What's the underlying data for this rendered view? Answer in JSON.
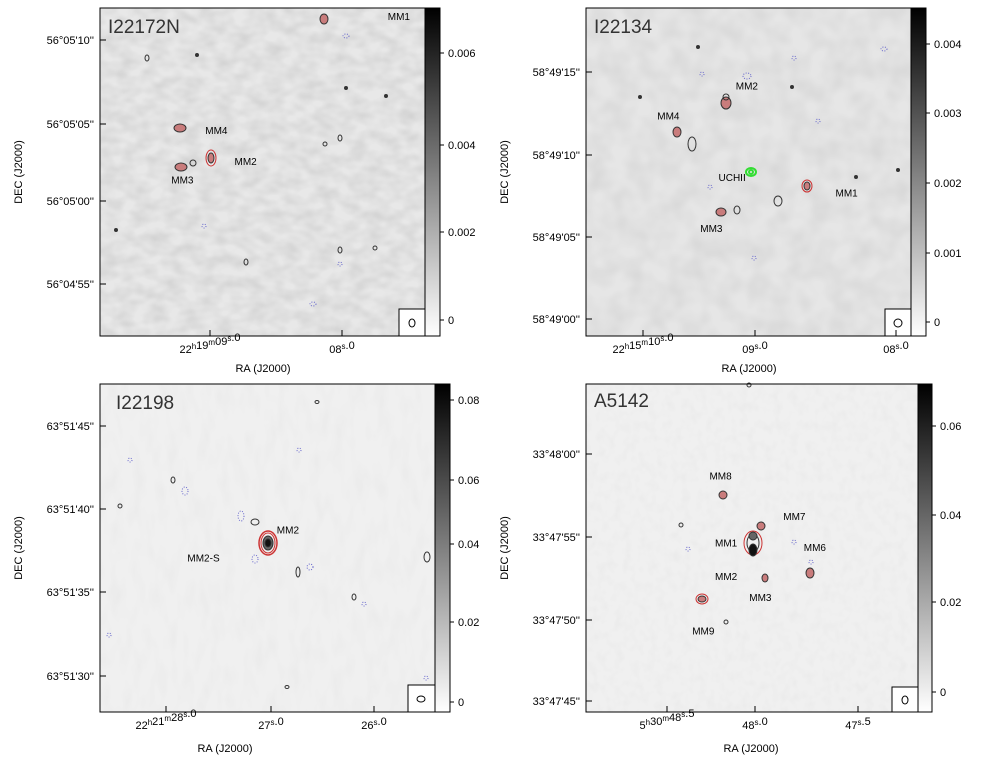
{
  "chart_data": [
    {
      "type": "contour-map",
      "title": "I22172N",
      "xlabel": "RA (J2000)",
      "ylabel": "DEC (J2000)",
      "x_ticks": [
        "22h19m09.0s",
        "08.0s"
      ],
      "x_tick_labels": [
        {
          "main": "22",
          "sup": "h",
          "main2": "19",
          "sup2": "m",
          "main3": "09",
          "sup3": "s",
          "main4": ".0"
        },
        {
          "main": "08",
          "sup": "s",
          "main2": ".0"
        }
      ],
      "y_tick_labels": [
        "56°05'10''",
        "56°05'05''",
        "56°05'00''",
        "56°04'55''"
      ],
      "colorbar": {
        "ticks": [
          "0.006",
          "0.004",
          "0.002",
          "0"
        ],
        "range": [
          0,
          0.0071
        ]
      },
      "sources": [
        {
          "name": "MM1",
          "ra_frac": 0.83,
          "dec_frac": 0.955
        },
        {
          "name": "MM2",
          "ra_frac": 0.34,
          "dec_frac": 0.53
        },
        {
          "name": "MM3",
          "ra_frac": 0.25,
          "dec_frac": 0.52
        },
        {
          "name": "MM4",
          "ra_frac": 0.25,
          "dec_frac": 0.625
        }
      ]
    },
    {
      "type": "contour-map",
      "title": "I22134",
      "xlabel": "RA (J2000)",
      "ylabel": "DEC (J2000)",
      "x_ticks": [
        "22h15m10.0s",
        "09.0s",
        "08.0s"
      ],
      "x_tick_labels": [
        {
          "main": "22",
          "sup": "h",
          "main2": "15",
          "sup2": "m",
          "main3": "10",
          "sup3": "s",
          "main4": ".0"
        },
        {
          "main": "09",
          "sup": "s",
          "main2": ".0"
        },
        {
          "main": "08",
          "sup": "s",
          "main2": ".0"
        }
      ],
      "y_tick_labels": [
        "58°49'15''",
        "58°49'10''",
        "58°49'05''",
        "58°49'00''"
      ],
      "colorbar": {
        "ticks": [
          "0.004",
          "0.003",
          "0.002",
          "0.001",
          "0"
        ],
        "range": [
          0,
          0.0045
        ]
      },
      "sources": [
        {
          "name": "MM1",
          "ra_frac": 0.7,
          "dec_frac": 0.44
        },
        {
          "name": "MM2",
          "ra_frac": 0.43,
          "dec_frac": 0.74
        },
        {
          "name": "MM3",
          "ra_frac": 0.37,
          "dec_frac": 0.36
        },
        {
          "name": "MM4",
          "ra_frac": 0.25,
          "dec_frac": 0.62
        },
        {
          "name": "UCHII",
          "ra_frac": 0.5,
          "dec_frac": 0.485
        }
      ]
    },
    {
      "type": "contour-map",
      "title": "I22198",
      "xlabel": "RA (J2000)",
      "ylabel": "DEC (J2000)",
      "x_ticks": [
        "22h21m28.0s",
        "27.0s",
        "26.0s"
      ],
      "x_tick_labels": [
        {
          "main": "22",
          "sup": "h",
          "main2": "21",
          "sup2": "m",
          "main3": "28",
          "sup3": "s",
          "main4": ".0"
        },
        {
          "main": "27",
          "sup": "s",
          "main2": ".0"
        },
        {
          "main": "26",
          "sup": "s",
          "main2": ".0"
        }
      ],
      "y_tick_labels": [
        "63°51'45''",
        "63°51'40''",
        "63°51'35''",
        "63°51'30''"
      ],
      "colorbar": {
        "ticks": [
          "0.08",
          "0.06",
          "0.04",
          "0.02",
          "0"
        ],
        "range": [
          0,
          0.08
        ]
      },
      "sources": [
        {
          "name": "MM2",
          "ra_frac": 0.48,
          "dec_frac": 0.55
        },
        {
          "name": "MM2-S",
          "ra_frac": 0.44,
          "dec_frac": 0.51
        }
      ]
    },
    {
      "type": "contour-map",
      "title": "A5142",
      "xlabel": "RA (J2000)",
      "ylabel": "DEC (J2000)",
      "x_ticks": [
        "5h30m48.5s",
        "48.0s",
        "47.5s"
      ],
      "x_tick_labels": [
        {
          "main": "5",
          "sup": "h",
          "main2": "30",
          "sup2": "m",
          "main3": "48",
          "sup3": "s",
          "main4": ".5"
        },
        {
          "main": "48",
          "sup": "s",
          "main2": ".0"
        },
        {
          "main": "47",
          "sup": "s",
          "main2": ".5"
        }
      ],
      "y_tick_labels": [
        "33°48'00''",
        "33°47'55''",
        "33°47'50''",
        "33°47'45''"
      ],
      "colorbar": {
        "ticks": [
          "0.06",
          "0.04",
          "0.02",
          "0"
        ],
        "range": [
          0,
          0.07
        ]
      },
      "sources": [
        {
          "name": "MM1",
          "ra_frac": 0.5,
          "dec_frac": 0.52
        },
        {
          "name": "MM2",
          "ra_frac": 0.5,
          "dec_frac": 0.47
        },
        {
          "name": "MM3",
          "ra_frac": 0.54,
          "dec_frac": 0.4
        },
        {
          "name": "MM6",
          "ra_frac": 0.68,
          "dec_frac": 0.42
        },
        {
          "name": "MM7",
          "ra_frac": 0.54,
          "dec_frac": 0.58
        },
        {
          "name": "MM8",
          "ra_frac": 0.42,
          "dec_frac": 0.66
        },
        {
          "name": "MM9",
          "ra_frac": 0.35,
          "dec_frac": 0.31
        }
      ]
    }
  ],
  "colors": {
    "contour_dark": "#333333",
    "contour_red": "#cc3333",
    "uchii": "#33dd33",
    "negative": "#6666cc"
  }
}
